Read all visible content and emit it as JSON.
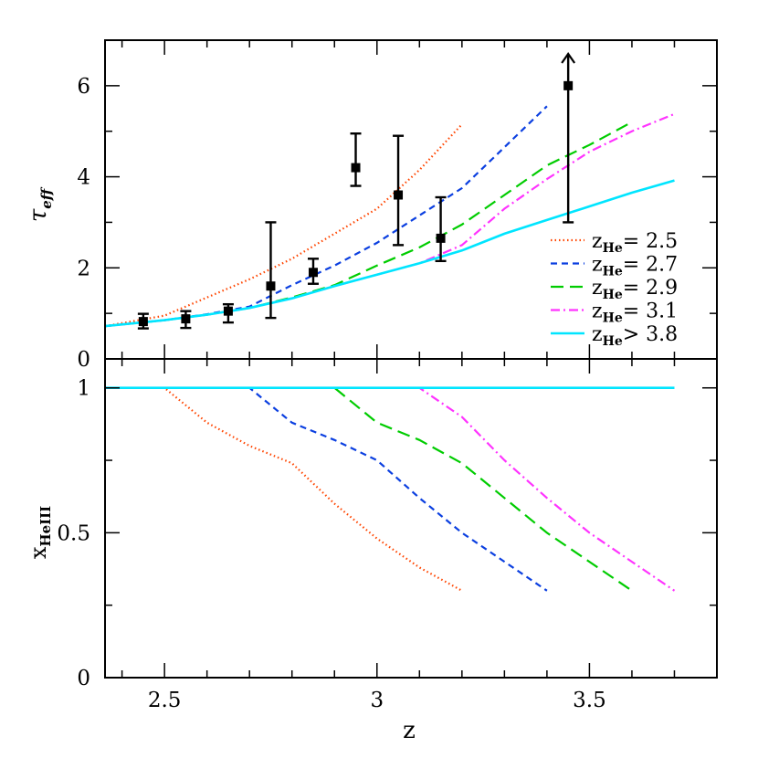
{
  "chart_data": [
    {
      "type": "line",
      "panel": "top",
      "ylabel": "τ",
      "ylabel_sub": "eff",
      "xlim": [
        2.36,
        3.8
      ],
      "ylim": [
        0,
        7
      ],
      "yticks": [
        0,
        2,
        4,
        6
      ],
      "yticklabels": [
        "0",
        "2",
        "4",
        "6"
      ],
      "series": [
        {
          "name": "zHe = 2.5",
          "label_main": "z",
          "label_sub": "He",
          "label_rest": "=  2.5",
          "color": "#ff4500",
          "dash": "1.5 3",
          "x": [
            2.36,
            2.5,
            2.6,
            2.7,
            2.8,
            2.9,
            3.0,
            3.1,
            3.2
          ],
          "y": [
            0.72,
            0.95,
            1.35,
            1.75,
            2.2,
            2.75,
            3.3,
            4.15,
            5.15
          ]
        },
        {
          "name": "zHe = 2.7",
          "label_main": "z",
          "label_sub": "He",
          "label_rest": "=  2.7",
          "color": "#0b3fe0",
          "dash": "7 5",
          "x": [
            2.36,
            2.5,
            2.6,
            2.7,
            2.8,
            2.9,
            3.0,
            3.1,
            3.2,
            3.3,
            3.4
          ],
          "y": [
            0.72,
            0.85,
            0.98,
            1.15,
            1.62,
            2.05,
            2.55,
            3.15,
            3.75,
            4.65,
            5.55
          ]
        },
        {
          "name": "zHe = 2.9",
          "label_main": "z",
          "label_sub": "He",
          "label_rest": "=  2.9",
          "color": "#00cc00",
          "dash": "14 7",
          "x": [
            2.36,
            2.5,
            2.6,
            2.7,
            2.8,
            2.9,
            3.0,
            3.1,
            3.2,
            3.3,
            3.4,
            3.5,
            3.6
          ],
          "y": [
            0.72,
            0.85,
            0.97,
            1.12,
            1.35,
            1.62,
            2.05,
            2.45,
            2.95,
            3.6,
            4.25,
            4.7,
            5.2
          ]
        },
        {
          "name": "zHe = 3.1",
          "label_main": "z",
          "label_sub": "He",
          "label_rest": "=  3.1",
          "color": "#ff33ff",
          "dash": "10 4 2 4",
          "x": [
            2.36,
            2.5,
            2.6,
            2.7,
            2.8,
            2.9,
            3.0,
            3.1,
            3.2,
            3.3,
            3.4,
            3.5,
            3.6,
            3.7
          ],
          "y": [
            0.72,
            0.85,
            0.97,
            1.12,
            1.33,
            1.6,
            1.85,
            2.1,
            2.5,
            3.3,
            3.95,
            4.55,
            5.0,
            5.38
          ]
        },
        {
          "name": "zHe > 3.8",
          "label_main": "z",
          "label_sub": "He",
          "label_rest": ">  3.8",
          "color": "#00e5ff",
          "dash": "",
          "x": [
            2.36,
            2.5,
            2.6,
            2.7,
            2.8,
            2.9,
            3.0,
            3.1,
            3.2,
            3.3,
            3.4,
            3.5,
            3.6,
            3.7
          ],
          "y": [
            0.72,
            0.85,
            0.97,
            1.12,
            1.33,
            1.6,
            1.85,
            2.1,
            2.38,
            2.75,
            3.05,
            3.35,
            3.65,
            3.92
          ]
        }
      ],
      "observations": [
        {
          "x": 2.45,
          "y": 0.82,
          "err_low": 0.15,
          "err_high": 0.17,
          "lower_limit": false
        },
        {
          "x": 2.55,
          "y": 0.88,
          "err_low": 0.2,
          "err_high": 0.17,
          "lower_limit": false
        },
        {
          "x": 2.65,
          "y": 1.05,
          "err_low": 0.25,
          "err_high": 0.15,
          "lower_limit": false
        },
        {
          "x": 2.75,
          "y": 1.6,
          "err_low": 0.7,
          "err_high": 1.4,
          "lower_limit": false
        },
        {
          "x": 2.85,
          "y": 1.9,
          "err_low": 0.25,
          "err_high": 0.3,
          "lower_limit": false
        },
        {
          "x": 2.95,
          "y": 4.2,
          "err_low": 0.4,
          "err_high": 0.75,
          "lower_limit": false
        },
        {
          "x": 3.05,
          "y": 3.6,
          "err_low": 1.1,
          "err_high": 1.3,
          "lower_limit": false
        },
        {
          "x": 3.15,
          "y": 2.65,
          "err_low": 0.5,
          "err_high": 0.9,
          "lower_limit": false
        },
        {
          "x": 3.45,
          "y": 6.0,
          "err_low": 3.0,
          "err_high": 0.7,
          "lower_limit": true
        }
      ]
    },
    {
      "type": "line",
      "panel": "bottom",
      "xlabel": "z",
      "ylabel": "x",
      "ylabel_sub": "HeIII",
      "xlim": [
        2.36,
        3.8
      ],
      "ylim": [
        0,
        1.1
      ],
      "xticks": [
        2.5,
        3,
        3.5
      ],
      "xticklabels": [
        "2.5",
        "3",
        "3.5"
      ],
      "yticks": [
        0,
        0.5,
        1
      ],
      "yticklabels": [
        "0",
        "0.5",
        "1"
      ],
      "series": [
        {
          "name": "zHe = 2.5",
          "color": "#ff4500",
          "dash": "1.5 3",
          "x": [
            2.36,
            2.5,
            2.6,
            2.7,
            2.8,
            2.9,
            3.0,
            3.1,
            3.2
          ],
          "y": [
            1.0,
            1.0,
            0.88,
            0.8,
            0.74,
            0.6,
            0.48,
            0.38,
            0.3
          ]
        },
        {
          "name": "zHe = 2.7",
          "color": "#0b3fe0",
          "dash": "7 5",
          "x": [
            2.36,
            2.7,
            2.8,
            2.9,
            3.0,
            3.1,
            3.2,
            3.3,
            3.4
          ],
          "y": [
            1.0,
            1.0,
            0.88,
            0.82,
            0.75,
            0.62,
            0.5,
            0.4,
            0.3
          ]
        },
        {
          "name": "zHe = 2.9",
          "color": "#00cc00",
          "dash": "14 7",
          "x": [
            2.36,
            2.9,
            3.0,
            3.1,
            3.2,
            3.3,
            3.4,
            3.5,
            3.6
          ],
          "y": [
            1.0,
            1.0,
            0.88,
            0.82,
            0.74,
            0.62,
            0.5,
            0.4,
            0.3
          ]
        },
        {
          "name": "zHe = 3.1",
          "color": "#ff33ff",
          "dash": "10 4 2 4",
          "x": [
            2.36,
            3.1,
            3.2,
            3.3,
            3.4,
            3.5,
            3.6,
            3.7
          ],
          "y": [
            1.0,
            1.0,
            0.9,
            0.75,
            0.62,
            0.5,
            0.4,
            0.3
          ]
        },
        {
          "name": "zHe > 3.8",
          "color": "#00e5ff",
          "dash": "",
          "x": [
            2.36,
            3.7
          ],
          "y": [
            1.0,
            1.0
          ]
        }
      ]
    }
  ]
}
